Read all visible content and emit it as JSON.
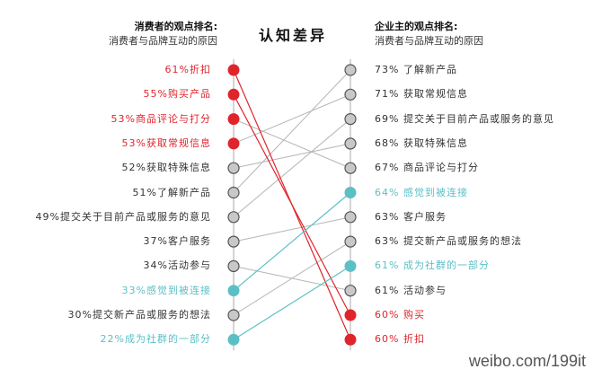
{
  "chart_data": {
    "type": "slope",
    "title": "认知差异",
    "left_header": {
      "title": "消费者的观点排名:",
      "subtitle": "消费者与品牌互动的原因"
    },
    "right_header": {
      "title": "企业主的观点排名:",
      "subtitle": "消费者与品牌互动的原因"
    },
    "colors": {
      "red": "#e0242c",
      "teal": "#5cbfc6",
      "gray": "#b5b5b5",
      "text": "#333333",
      "axis": "#aaaaaa"
    },
    "left": [
      {
        "label": "61%折扣",
        "value": 61,
        "color": "red"
      },
      {
        "label": "55%购买产品",
        "value": 55,
        "color": "red"
      },
      {
        "label": "53%商品评论与打分",
        "value": 53,
        "color": "red"
      },
      {
        "label": "53%获取常规信息",
        "value": 53,
        "color": "red"
      },
      {
        "label": "52%获取特殊信息",
        "value": 52,
        "color": "gray"
      },
      {
        "label": "51%了解新产品",
        "value": 51,
        "color": "gray"
      },
      {
        "label": "49%提交关于目前产品或服务的意见",
        "value": 49,
        "color": "gray"
      },
      {
        "label": "37%客户服务",
        "value": 37,
        "color": "gray"
      },
      {
        "label": "34%活动参与",
        "value": 34,
        "color": "gray"
      },
      {
        "label": "33%感觉到被连接",
        "value": 33,
        "color": "teal"
      },
      {
        "label": "30%提交新产品或服务的想法",
        "value": 30,
        "color": "gray"
      },
      {
        "label": "22%成为社群的一部分",
        "value": 22,
        "color": "teal"
      }
    ],
    "right": [
      {
        "label": "73% 了解新产品",
        "value": 73,
        "color": "gray"
      },
      {
        "label": "71% 获取常规信息",
        "value": 71,
        "color": "gray"
      },
      {
        "label": "69% 提交关于目前产品或服务的意见",
        "value": 69,
        "color": "gray"
      },
      {
        "label": "68% 获取特殊信息",
        "value": 68,
        "color": "gray"
      },
      {
        "label": "67% 商品评论与打分",
        "value": 67,
        "color": "gray"
      },
      {
        "label": "64% 感觉到被连接",
        "value": 64,
        "color": "teal"
      },
      {
        "label": "63% 客户服务",
        "value": 63,
        "color": "gray"
      },
      {
        "label": "63% 提交新产品或服务的想法",
        "value": 63,
        "color": "gray"
      },
      {
        "label": "61% 成为社群的一部分",
        "value": 61,
        "color": "teal"
      },
      {
        "label": "61% 活动参与",
        "value": 61,
        "color": "gray"
      },
      {
        "label": "60% 购买",
        "value": 60,
        "color": "red"
      },
      {
        "label": "60% 折扣",
        "value": 60,
        "color": "red"
      }
    ],
    "links": [
      {
        "from": 0,
        "to": 11,
        "color": "red"
      },
      {
        "from": 1,
        "to": 10,
        "color": "red"
      },
      {
        "from": 2,
        "to": 4,
        "color": "gray"
      },
      {
        "from": 3,
        "to": 1,
        "color": "gray"
      },
      {
        "from": 4,
        "to": 3,
        "color": "gray"
      },
      {
        "from": 5,
        "to": 0,
        "color": "gray"
      },
      {
        "from": 6,
        "to": 2,
        "color": "gray"
      },
      {
        "from": 7,
        "to": 6,
        "color": "gray"
      },
      {
        "from": 8,
        "to": 9,
        "color": "gray"
      },
      {
        "from": 9,
        "to": 5,
        "color": "teal"
      },
      {
        "from": 10,
        "to": 7,
        "color": "gray"
      },
      {
        "from": 11,
        "to": 8,
        "color": "teal"
      }
    ]
  },
  "watermark": "weibo.com/199it"
}
